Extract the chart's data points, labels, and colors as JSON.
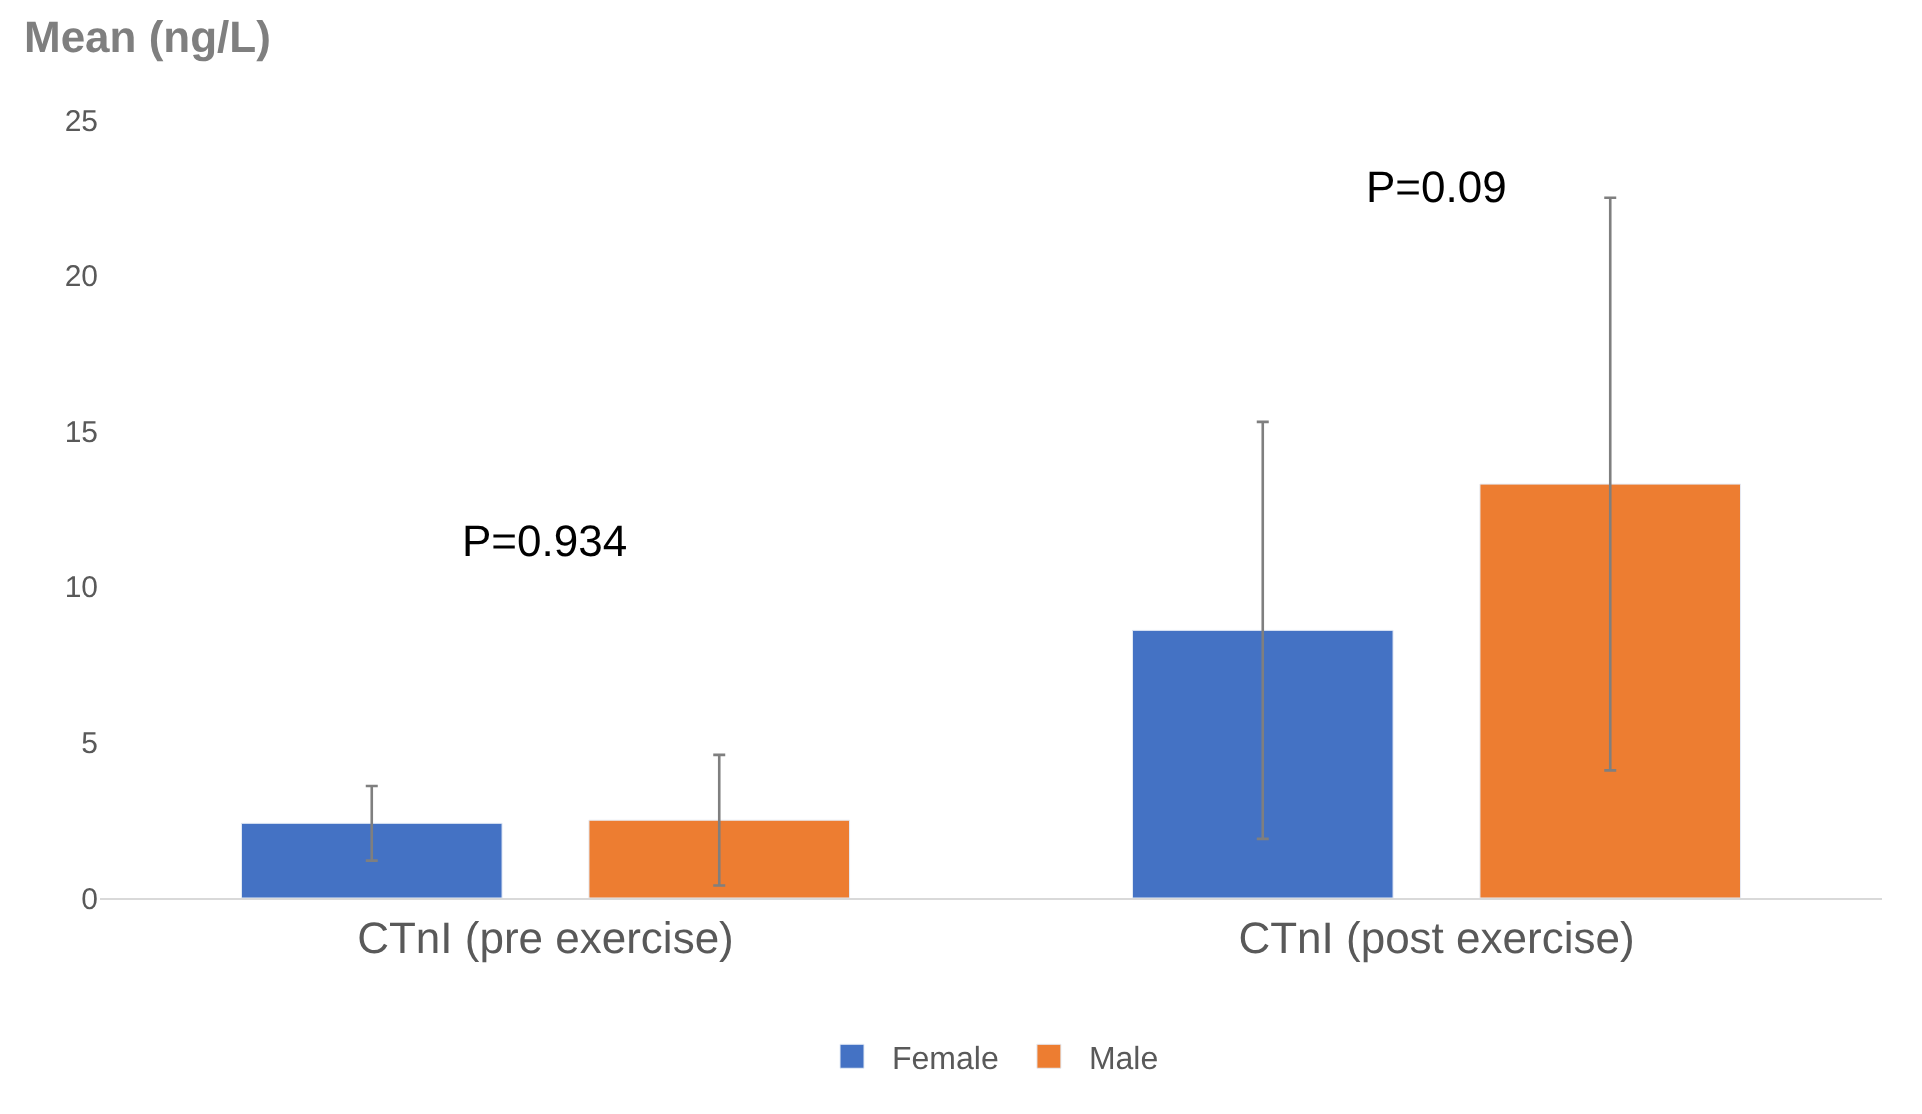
{
  "chart_data": {
    "type": "bar",
    "ylabel": "Mean (ng/L)",
    "categories": [
      "CTnI (pre exercise)",
      "CTnI (post exercise)"
    ],
    "series": [
      {
        "name": "Female",
        "color": "#4472c4",
        "values": [
          2.4,
          8.6
        ],
        "errors": [
          1.2,
          6.7
        ]
      },
      {
        "name": "Male",
        "color": "#ed7d31",
        "values": [
          2.5,
          13.3
        ],
        "errors": [
          2.1,
          9.2
        ]
      }
    ],
    "ylim": [
      0,
      25
    ],
    "yticks": [
      0,
      5,
      10,
      15,
      20,
      25
    ],
    "grid": false,
    "legend": "bottom",
    "annotations": [
      "P=0.934",
      "P=0.09"
    ]
  }
}
